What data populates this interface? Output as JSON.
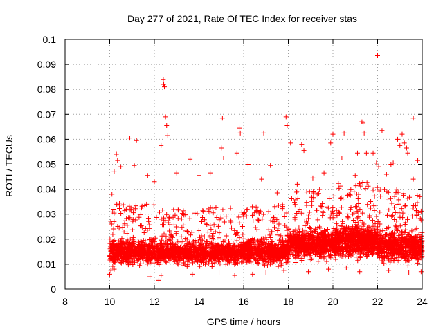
{
  "chart_data": {
    "type": "scatter",
    "title": "Day 277 of 2021, Rate Of TEC Index for receiver stas",
    "xlabel": "GPS time / hours",
    "ylabel": "ROTI / TECUs",
    "xlim": [
      8,
      24
    ],
    "ylim": [
      0,
      0.1
    ],
    "x_ticks": [
      "8",
      "10",
      "12",
      "14",
      "16",
      "18",
      "20",
      "22",
      "24"
    ],
    "y_ticks": [
      "0",
      "0.01",
      "0.02",
      "0.03",
      "0.04",
      "0.05",
      "0.06",
      "0.07",
      "0.08",
      "0.09",
      "0.1"
    ],
    "grid": true,
    "marker": "+",
    "series_color": "#ff0000",
    "series": [
      {
        "name": "ROTI",
        "points": [
          [
            10.9,
            0.0605
          ],
          [
            11.2,
            0.0595
          ],
          [
            12.4,
            0.084
          ],
          [
            12.42,
            0.082
          ],
          [
            12.45,
            0.081
          ],
          [
            12.5,
            0.069
          ],
          [
            12.55,
            0.0655
          ],
          [
            15.05,
            0.0685
          ],
          [
            15.8,
            0.0645
          ],
          [
            15.85,
            0.0625
          ],
          [
            16.9,
            0.0625
          ],
          [
            17.9,
            0.069
          ],
          [
            17.95,
            0.0655
          ],
          [
            20.5,
            0.0625
          ],
          [
            21.3,
            0.067
          ],
          [
            21.35,
            0.0665
          ],
          [
            21.4,
            0.0625
          ],
          [
            22.0,
            0.0935
          ],
          [
            22.2,
            0.0635
          ],
          [
            22.9,
            0.06
          ],
          [
            23.1,
            0.062
          ],
          [
            23.2,
            0.0585
          ],
          [
            23.6,
            0.0685
          ],
          [
            10.3,
            0.054
          ],
          [
            10.35,
            0.0515
          ],
          [
            10.5,
            0.049
          ],
          [
            12.3,
            0.0575
          ],
          [
            12.6,
            0.0615
          ],
          [
            13.6,
            0.052
          ],
          [
            15.0,
            0.0565
          ],
          [
            15.1,
            0.0525
          ],
          [
            15.7,
            0.0545
          ],
          [
            16.2,
            0.05
          ],
          [
            17.2,
            0.0495
          ],
          [
            18.1,
            0.0585
          ],
          [
            18.6,
            0.058
          ],
          [
            18.7,
            0.0555
          ],
          [
            19.9,
            0.0585
          ],
          [
            20.0,
            0.062
          ],
          [
            20.4,
            0.0525
          ],
          [
            21.1,
            0.0545
          ],
          [
            21.5,
            0.0545
          ],
          [
            21.8,
            0.0545
          ],
          [
            21.95,
            0.0505
          ],
          [
            22.05,
            0.049
          ],
          [
            22.6,
            0.05
          ],
          [
            22.7,
            0.0505
          ],
          [
            23.0,
            0.0575
          ],
          [
            23.3,
            0.0565
          ],
          [
            23.35,
            0.0545
          ],
          [
            23.8,
            0.0515
          ],
          [
            10.2,
            0.047
          ],
          [
            11.1,
            0.0495
          ],
          [
            11.7,
            0.0455
          ],
          [
            13.0,
            0.0465
          ],
          [
            14.0,
            0.0455
          ],
          [
            14.5,
            0.0465
          ],
          [
            16.8,
            0.044
          ],
          [
            19.1,
            0.0445
          ],
          [
            19.6,
            0.0465
          ],
          [
            21.0,
            0.0455
          ],
          [
            22.4,
            0.046
          ],
          [
            23.6,
            0.044
          ],
          [
            10.1,
            0.038
          ],
          [
            12.0,
            0.043
          ],
          [
            17.5,
            0.0385
          ],
          [
            18.4,
            0.042
          ],
          [
            20.8,
            0.04
          ],
          [
            23.9,
            0.037
          ],
          [
            10.0,
            0.006
          ],
          [
            10.05,
            0.0075
          ],
          [
            10.2,
            0.008
          ],
          [
            11.8,
            0.005
          ],
          [
            12.2,
            0.0035
          ],
          [
            12.3,
            0.0055
          ],
          [
            13.7,
            0.006
          ],
          [
            14.9,
            0.0065
          ],
          [
            15.6,
            0.0055
          ],
          [
            16.4,
            0.006
          ],
          [
            17.0,
            0.0065
          ],
          [
            17.8,
            0.0075
          ],
          [
            18.9,
            0.007
          ],
          [
            19.8,
            0.008
          ],
          [
            20.6,
            0.0085
          ],
          [
            21.2,
            0.007
          ],
          [
            22.5,
            0.0075
          ],
          [
            23.4,
            0.0065
          ],
          [
            23.95,
            0.007
          ]
        ]
      }
    ],
    "cloud": [
      {
        "x_from": 10.0,
        "x_to": 12.0,
        "y_center": 0.015,
        "spread": 0.008,
        "tail_max": 0.035,
        "count": 650
      },
      {
        "x_from": 12.0,
        "x_to": 14.0,
        "y_center": 0.0145,
        "spread": 0.007,
        "tail_max": 0.032,
        "count": 600
      },
      {
        "x_from": 14.0,
        "x_to": 16.0,
        "y_center": 0.0145,
        "spread": 0.007,
        "tail_max": 0.033,
        "count": 600
      },
      {
        "x_from": 16.0,
        "x_to": 18.0,
        "y_center": 0.015,
        "spread": 0.008,
        "tail_max": 0.034,
        "count": 650
      },
      {
        "x_from": 18.0,
        "x_to": 20.0,
        "y_center": 0.018,
        "spread": 0.009,
        "tail_max": 0.04,
        "count": 750
      },
      {
        "x_from": 20.0,
        "x_to": 22.0,
        "y_center": 0.019,
        "spread": 0.01,
        "tail_max": 0.043,
        "count": 800
      },
      {
        "x_from": 22.0,
        "x_to": 24.0,
        "y_center": 0.017,
        "spread": 0.009,
        "tail_max": 0.04,
        "count": 750
      }
    ]
  }
}
